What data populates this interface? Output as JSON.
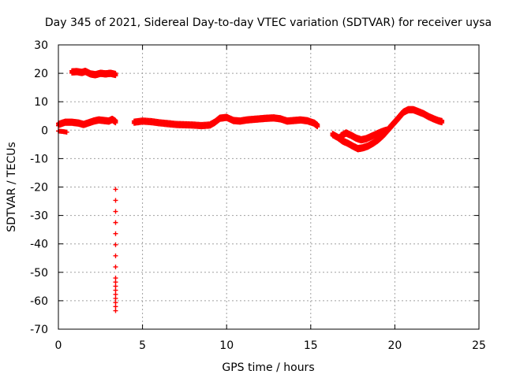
{
  "chart_data": {
    "type": "scatter",
    "title": "Day 345 of 2021, Sidereal Day-to-day VTEC variation (SDTVAR) for receiver uysa",
    "xlabel": "GPS time / hours",
    "ylabel": "SDTVAR / TECUs",
    "xlim": [
      0,
      25
    ],
    "ylim": [
      -70,
      30
    ],
    "xticks": [
      0,
      5,
      10,
      15,
      20,
      25
    ],
    "yticks": [
      30,
      20,
      10,
      0,
      -10,
      -20,
      -30,
      -40,
      -50,
      -60,
      -70
    ],
    "grid": true,
    "marker": "+",
    "series": [
      {
        "name": "SDTVAR",
        "color": "#ff0000",
        "segments": [
          {
            "x": [
              0.0,
              0.3,
              0.5
            ],
            "y": [
              -0.3,
              -0.5,
              -0.7
            ]
          },
          {
            "x": [
              0.0,
              0.4,
              0.8,
              1.2,
              1.5,
              1.8,
              2.1,
              2.4,
              2.7,
              3.0,
              3.2,
              3.4
            ],
            "y": [
              2.0,
              2.8,
              2.8,
              2.5,
              2.0,
              2.6,
              3.2,
              3.6,
              3.4,
              3.2,
              3.8,
              3.0
            ]
          },
          {
            "x": [
              0.8,
              1.1,
              1.4,
              1.6,
              1.9,
              2.2,
              2.5,
              2.8,
              3.1,
              3.4
            ],
            "y": [
              20.5,
              20.6,
              20.3,
              20.7,
              19.8,
              19.5,
              20.0,
              19.8,
              20.0,
              19.6
            ]
          },
          {
            "x": [
              3.4,
              3.4,
              3.4
            ],
            "y": [
              -20.8,
              -52.0,
              -63.5
            ]
          },
          {
            "x": [
              4.5,
              5.0,
              5.5,
              6.0,
              6.5,
              7.0,
              7.5,
              8.0,
              8.5,
              9.0,
              9.3,
              9.6,
              10.0,
              10.4,
              10.8,
              11.2,
              11.6,
              12.0,
              12.4,
              12.8,
              13.2,
              13.6,
              14.0,
              14.4,
              14.8,
              15.2,
              15.4
            ],
            "y": [
              2.8,
              3.2,
              3.0,
              2.6,
              2.3,
              2.0,
              1.9,
              1.8,
              1.6,
              1.8,
              2.8,
              4.2,
              4.5,
              3.4,
              3.2,
              3.6,
              3.8,
              4.0,
              4.2,
              4.3,
              4.0,
              3.2,
              3.4,
              3.6,
              3.3,
              2.5,
              1.6
            ]
          },
          {
            "x": [
              16.3,
              16.6,
              16.9,
              17.2,
              17.5,
              17.8,
              18.1,
              18.4,
              18.7,
              19.0,
              19.3,
              19.6,
              19.9,
              20.2,
              20.5,
              20.8,
              21.1,
              21.4,
              21.7,
              22.0,
              22.3,
              22.6,
              22.8
            ],
            "y": [
              -1.5,
              -2.5,
              -3.8,
              -4.6,
              -5.6,
              -6.5,
              -6.2,
              -5.6,
              -4.6,
              -3.4,
              -1.8,
              0.2,
              2.2,
              4.2,
              6.3,
              7.2,
              7.2,
              6.5,
              5.8,
              4.8,
              4.0,
              3.3,
              3.0
            ]
          },
          {
            "x": [
              16.8,
              17.1,
              17.4,
              17.7,
              18.0,
              18.3,
              18.6,
              18.9,
              19.2,
              19.5
            ],
            "y": [
              -2.0,
              -1.0,
              -1.8,
              -2.8,
              -3.4,
              -3.0,
              -2.2,
              -1.4,
              -0.6,
              0.0
            ]
          }
        ]
      }
    ]
  }
}
